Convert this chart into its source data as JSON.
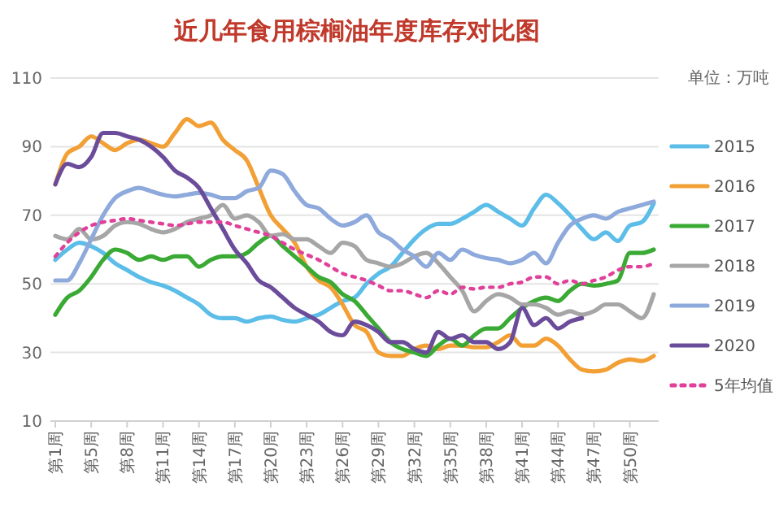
{
  "chart_data": {
    "type": "line",
    "title": "近几年食用棕榈油年度库存对比图",
    "annotations": [
      "单位：万吨"
    ],
    "categories": [
      "第1周",
      null,
      null,
      "第5周",
      null,
      null,
      "第8周",
      null,
      null,
      "第11周",
      null,
      null,
      "第14周",
      null,
      null,
      "第17周",
      null,
      null,
      "第20周",
      null,
      null,
      "第23周",
      null,
      null,
      "第26周",
      null,
      null,
      "第29周",
      null,
      null,
      "第32周",
      null,
      null,
      "第35周",
      null,
      null,
      "第38周",
      null,
      null,
      "第41周",
      null,
      null,
      "第44周",
      null,
      null,
      "第47周",
      null,
      null,
      "第50周",
      null,
      null
    ],
    "ylim": [
      10,
      110
    ],
    "yticks": [
      10,
      30,
      50,
      70,
      90,
      110
    ],
    "grid": "y",
    "legend": "right",
    "marker": "none",
    "series": [
      {
        "name": "2015",
        "color": "#5bbde8",
        "values": [
          57,
          60,
          62,
          61,
          59,
          56,
          54,
          52,
          50.5,
          49.5,
          48,
          46,
          44,
          41,
          40,
          40,
          39,
          40,
          40.5,
          39.5,
          39,
          40,
          41,
          43,
          45,
          46,
          50,
          53,
          55,
          59,
          63,
          66,
          67.5,
          67.5,
          69,
          71,
          73,
          71,
          69,
          67,
          72,
          76,
          73.5,
          70,
          66,
          63,
          65,
          62.5,
          67,
          68,
          73.5
        ]
      },
      {
        "name": "2016",
        "color": "#f2a035",
        "values": [
          79,
          88,
          90,
          93,
          91,
          89,
          91,
          92,
          91,
          90,
          94,
          98,
          96,
          97,
          92,
          89,
          86,
          78,
          70,
          66,
          62,
          55,
          51,
          49,
          44,
          38,
          36,
          30,
          29,
          29,
          31,
          32,
          31,
          32,
          32,
          31.5,
          31.5,
          33,
          35,
          32,
          32,
          34,
          32,
          28,
          25,
          24.5,
          25,
          27,
          28,
          27.5,
          29
        ]
      },
      {
        "name": "2017",
        "color": "#3aaa35",
        "values": [
          41,
          46,
          48,
          52,
          57,
          60,
          59,
          57,
          58,
          57,
          58,
          58,
          55,
          57,
          58,
          58,
          59,
          62,
          64,
          61,
          58,
          55,
          52,
          50.5,
          47,
          45,
          41,
          37,
          33,
          31,
          30,
          29,
          32,
          34,
          32,
          35,
          37,
          37,
          40,
          43,
          45,
          46,
          45,
          48,
          50,
          49.5,
          50,
          51,
          59,
          59,
          60
        ]
      },
      {
        "name": "2018",
        "color": "#a6a6a6",
        "values": [
          64,
          63,
          66,
          63,
          64,
          67,
          68,
          67.5,
          66,
          65,
          66,
          68,
          69,
          70,
          73,
          69,
          70,
          68,
          64,
          64.5,
          63,
          63,
          61,
          59,
          62,
          61,
          57,
          56,
          55,
          56,
          58,
          59,
          56,
          52,
          48,
          42,
          45,
          47,
          46,
          44,
          44,
          43,
          41,
          42,
          41,
          42,
          44,
          44,
          42,
          40,
          47
        ]
      },
      {
        "name": "2019",
        "color": "#8ea9db",
        "values": [
          51,
          51,
          56,
          63,
          70,
          75,
          77,
          78,
          77,
          76,
          75.5,
          76,
          76.5,
          76,
          75,
          75,
          77,
          78,
          83,
          82,
          77,
          73,
          72,
          69,
          67,
          68,
          70,
          65,
          63,
          60,
          58,
          55,
          59,
          57,
          60,
          58.5,
          57.5,
          57,
          56,
          57,
          59,
          56,
          62,
          67,
          69,
          70,
          69,
          71,
          72,
          73,
          74
        ]
      },
      {
        "name": "2020",
        "color": "#6b4c9a",
        "values": [
          79,
          85,
          84,
          87,
          94,
          94,
          93,
          92,
          90,
          87,
          83,
          81,
          78,
          72,
          66,
          60,
          56,
          51,
          49,
          46,
          43,
          41,
          39,
          36,
          35,
          39,
          38,
          36,
          33,
          33,
          31,
          30,
          36,
          34,
          35,
          33,
          33,
          31,
          33,
          43,
          38,
          40,
          37,
          39,
          40,
          null,
          null,
          null,
          null,
          null,
          null
        ]
      },
      {
        "name": "5年均值",
        "color": "#e0409a",
        "line_style": "dotted",
        "values": [
          58,
          62,
          65,
          67,
          68,
          68.5,
          69,
          68.5,
          68,
          67.5,
          67,
          67.5,
          68,
          68,
          68,
          67,
          66,
          65,
          64,
          62,
          60,
          58.5,
          57,
          55,
          53,
          52,
          51,
          49.5,
          48,
          48,
          47,
          46,
          48,
          47,
          49,
          48.5,
          49,
          49,
          50,
          50.5,
          52,
          52,
          50,
          51,
          50,
          51,
          52,
          54,
          55,
          55,
          56
        ]
      }
    ]
  }
}
